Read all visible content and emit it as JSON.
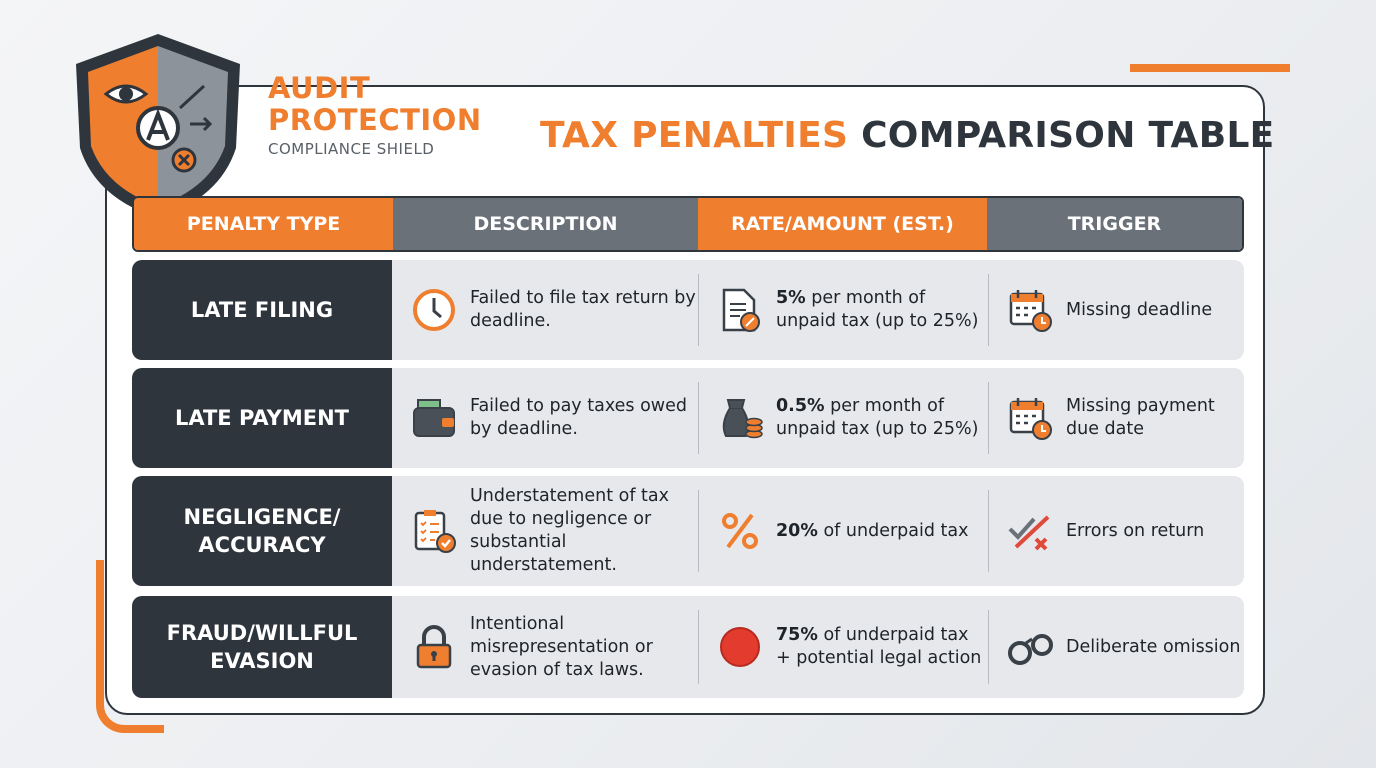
{
  "brand": {
    "line1": "AUDIT",
    "line2": "PROTECTION",
    "tagline": "COMPLIANCE SHIELD"
  },
  "title": {
    "highlight": "TAX PENALTIES",
    "rest": "COMPARISON TABLE"
  },
  "table": {
    "headers": [
      "PENALTY TYPE",
      "DESCRIPTION",
      "RATE/AMOUNT (EST.)",
      "TRIGGER"
    ],
    "rows": [
      {
        "type": "LATE FILING",
        "description": "Failed to file tax return by deadline.",
        "rate": {
          "emphasis": "5%",
          "text": "per month of unpaid tax (up to 25%)"
        },
        "trigger": "Missing deadline"
      },
      {
        "type": "LATE PAYMENT",
        "description": "Failed to pay taxes owed by deadline.",
        "rate": {
          "emphasis": "0.5%",
          "text": "per month of unpaid tax (up to 25%)"
        },
        "trigger": "Missing payment due date"
      },
      {
        "type": "NEGLIGENCE/ ACCURACY",
        "description": "Understatement of tax due to negligence or substantial understatement.",
        "rate": {
          "emphasis": "20%",
          "text": "of underpaid tax"
        },
        "trigger": "Errors on return"
      },
      {
        "type": "FRAUD/WILLFUL EVASION",
        "description": "Intentional misrepresentation or evasion of tax laws.",
        "rate": {
          "emphasis": "75%",
          "text": "of underpaid tax + potential legal action"
        },
        "trigger": "Deliberate omission"
      }
    ]
  }
}
